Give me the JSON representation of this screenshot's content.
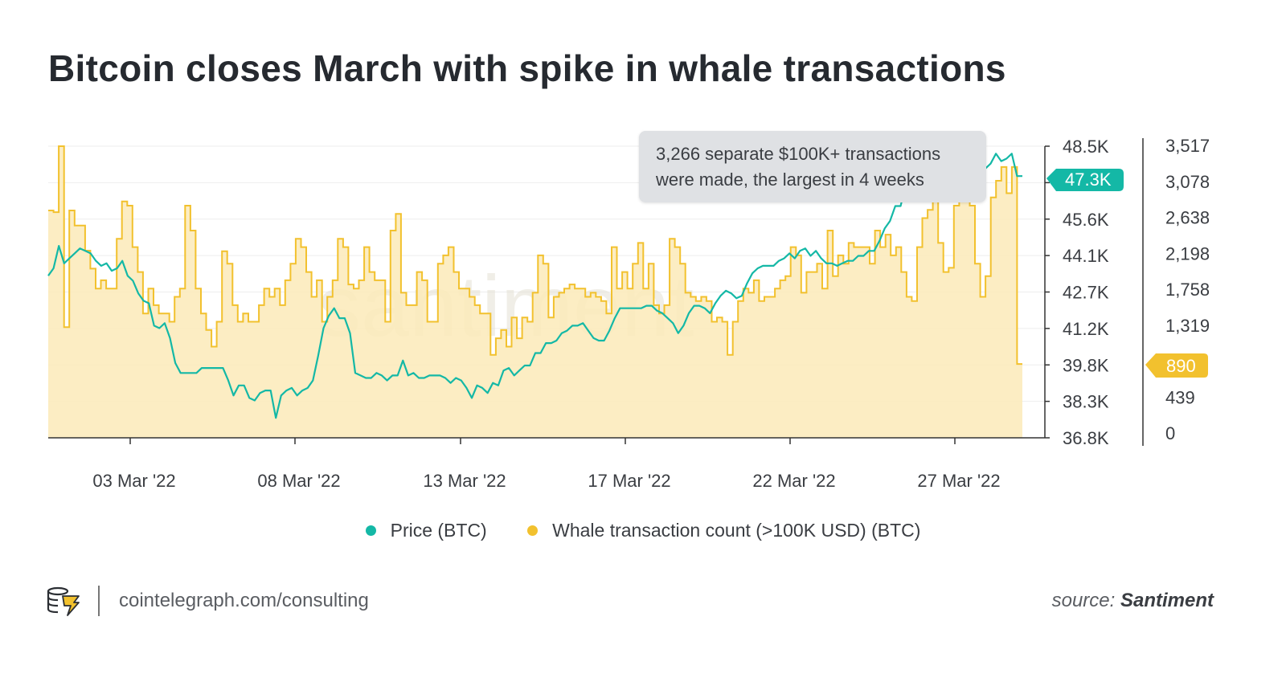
{
  "title": "Bitcoin closes March with spike in whale transactions",
  "callout": {
    "line1": "3,266 separate $100K+ transactions",
    "line2": "were made, the largest in 4 weeks"
  },
  "watermark": "santiment",
  "price_badge": "47.3K",
  "whale_badge": "890",
  "legend": {
    "price": "Price (BTC)",
    "whale": "Whale transaction count (>100K USD) (BTC)"
  },
  "footer": {
    "site": "cointelegraph.com/consulting",
    "source_prefix": "source:",
    "source_name": "Santiment"
  },
  "colors": {
    "price": "#14b8a6",
    "whale": "#f2c12e",
    "whale_fill": "#fbeab8"
  },
  "chart_data": {
    "type": "line",
    "x_tick_labels": [
      "03 Mar '22",
      "08 Mar '22",
      "13 Mar '22",
      "17 Mar '22",
      "22 Mar '22",
      "27 Mar '22"
    ],
    "y_left_ticks": [
      "48.5K",
      "47.3K",
      "45.6K",
      "44.1K",
      "42.7K",
      "41.2K",
      "39.8K",
      "38.3K",
      "36.8K"
    ],
    "y_right_ticks": [
      "3,517",
      "3,078",
      "2,638",
      "2,198",
      "1,758",
      "1,319",
      "890",
      "439",
      "0"
    ],
    "price_range": [
      36800,
      48500
    ],
    "whale_range": [
      0,
      3517
    ],
    "series": [
      {
        "name": "Price (BTC)",
        "axis": "left",
        "values": [
          43300,
          43600,
          44500,
          43800,
          44000,
          44200,
          44400,
          44300,
          44200,
          43900,
          43700,
          43800,
          43500,
          43600,
          43900,
          43300,
          43100,
          42600,
          42300,
          42200,
          41300,
          41200,
          41400,
          40800,
          39800,
          39400,
          39400,
          39400,
          39400,
          39600,
          39600,
          39600,
          39600,
          39600,
          39100,
          38500,
          38900,
          38900,
          38400,
          38300,
          38600,
          38700,
          38700,
          37600,
          38500,
          38700,
          38800,
          38500,
          38700,
          38800,
          39100,
          40100,
          41200,
          41700,
          42000,
          41600,
          41600,
          41000,
          39400,
          39300,
          39200,
          39200,
          39400,
          39300,
          39100,
          39300,
          39300,
          39900,
          39300,
          39400,
          39200,
          39200,
          39300,
          39300,
          39300,
          39200,
          39000,
          39200,
          39100,
          38800,
          38400,
          38900,
          38800,
          38600,
          39000,
          38900,
          39500,
          39600,
          39300,
          39500,
          39700,
          39700,
          40200,
          40200,
          40600,
          40600,
          40700,
          41000,
          41100,
          41300,
          41300,
          41400,
          41100,
          40800,
          40700,
          40700,
          41100,
          41600,
          42000,
          42000,
          42000,
          42000,
          42000,
          42100,
          42100,
          41900,
          41800,
          41600,
          41400,
          41000,
          41300,
          41800,
          42100,
          42100,
          42000,
          41800,
          42200,
          42500,
          42700,
          42600,
          42400,
          42500,
          43000,
          43400,
          43600,
          43700,
          43700,
          43700,
          43900,
          44000,
          44200,
          44000,
          44300,
          44400,
          44100,
          44300,
          44000,
          43800,
          43800,
          43700,
          43800,
          43900,
          43900,
          44100,
          44100,
          44300,
          44300,
          44700,
          45200,
          45500,
          46100,
          46100,
          47000,
          47500,
          47800,
          47900,
          47300,
          46800,
          46700,
          46800,
          48300,
          47700,
          48000,
          48000,
          48600,
          48100,
          47800,
          47600,
          47800,
          48200,
          47900,
          48000,
          48200,
          47300,
          47300
        ]
      },
      {
        "name": "Whale transaction count (>100K USD) (BTC)",
        "axis": "right",
        "values": [
          2742,
          2722,
          3517,
          1335,
          2742,
          2560,
          2560,
          2257,
          2040,
          1800,
          1900,
          1800,
          1800,
          2400,
          2850,
          2800,
          2300,
          2000,
          1500,
          1800,
          1600,
          1500,
          1500,
          1400,
          1700,
          1800,
          2800,
          2500,
          1800,
          1500,
          1300,
          1100,
          1400,
          2250,
          2100,
          1600,
          1400,
          1500,
          1400,
          1400,
          1600,
          1800,
          1700,
          1800,
          1600,
          1900,
          2100,
          2400,
          2300,
          2000,
          1700,
          1900,
          1400,
          1700,
          1900,
          2400,
          2300,
          1850,
          1800,
          1900,
          2300,
          2000,
          1900,
          1900,
          1400,
          2500,
          2700,
          1750,
          1600,
          1600,
          2000,
          1900,
          1400,
          1400,
          2100,
          2200,
          2300,
          2000,
          1800,
          1800,
          1700,
          1600,
          1500,
          1500,
          1000,
          1200,
          1300,
          1100,
          1450,
          1200,
          1450,
          1400,
          1750,
          2200,
          2100,
          1450,
          1700,
          1750,
          1800,
          1850,
          1800,
          1800,
          1700,
          1750,
          1700,
          1650,
          1500,
          2300,
          1800,
          2000,
          1800,
          2100,
          2350,
          1800,
          2100,
          1600,
          1500,
          1600,
          2400,
          2300,
          2100,
          1750,
          1700,
          1650,
          1700,
          1650,
          1400,
          1450,
          1400,
          1000,
          1400,
          1650,
          1800,
          1750,
          1900,
          1650,
          1700,
          1700,
          1800,
          1900,
          1950,
          2300,
          2200,
          1750,
          2000,
          2000,
          2100,
          1800,
          2500,
          1950,
          2200,
          2100,
          2350,
          2300,
          2300,
          2300,
          2100,
          2500,
          2300,
          2450,
          2200,
          2300,
          2000,
          1700,
          1650,
          2300,
          2650,
          2750,
          2950,
          2350,
          2000,
          2050,
          2800,
          2950,
          3050,
          2800,
          2100,
          1700,
          1950,
          2900,
          3100,
          3266,
          2950,
          3266,
          890
        ]
      }
    ],
    "grid": true,
    "legend_position": "bottom"
  }
}
